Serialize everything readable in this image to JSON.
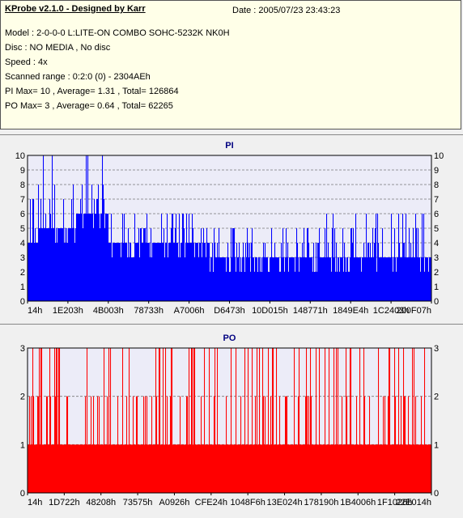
{
  "header": {
    "title": "KProbe v2.1.0 - Designed by Karr",
    "date": "Date : 2005/07/23 23:43:23",
    "model": "Model : 2-0-0-0 L:LITE-ON COMBO SOHC-5232K NK0H",
    "disc": "Disc : NO MEDIA , No disc",
    "speed": "Speed : 4x",
    "range": "Scanned range : 0:2:0 (0) - 2304AEh",
    "pi_summary": "PI Max= 10 , Average= 1.31 , Total= 126864",
    "po_summary": "PO Max= 3 , Average= 0.64 , Total= 62265"
  },
  "chart_data": [
    {
      "type": "bar",
      "title": "PI",
      "color": "#0000ff",
      "ylim": [
        0,
        10
      ],
      "yticks": [
        0,
        1,
        2,
        3,
        4,
        5,
        6,
        7,
        8,
        9,
        10
      ],
      "grid": true,
      "xtick_labels": [
        "14h",
        "1E203h",
        "4B003h",
        "78733h",
        "A7006h",
        "D6473h",
        "10D015h",
        "148771h",
        "1849E4h",
        "1C2403h",
        "200F07h"
      ],
      "segments": [
        {
          "x": [
            0.0,
            0.03
          ],
          "base": 4,
          "peaks": [
            5,
            6,
            7,
            8
          ]
        },
        {
          "x": [
            0.03,
            0.12
          ],
          "base": 5,
          "peaks": [
            6,
            7,
            8,
            10
          ]
        },
        {
          "x": [
            0.12,
            0.2
          ],
          "base": 6,
          "peaks": [
            7,
            8,
            10
          ]
        },
        {
          "x": [
            0.2,
            0.45
          ],
          "base": 4,
          "peaks": [
            5,
            6
          ]
        },
        {
          "x": [
            0.45,
            0.7
          ],
          "base": 3,
          "peaks": [
            4,
            5
          ]
        },
        {
          "x": [
            0.7,
            1.0
          ],
          "base": 3,
          "peaks": [
            4,
            5,
            6
          ]
        }
      ]
    },
    {
      "type": "bar",
      "title": "PO",
      "color": "#ff0000",
      "ylim": [
        0,
        3
      ],
      "yticks": [
        0,
        1,
        2,
        3
      ],
      "grid": true,
      "xtick_labels": [
        "14h",
        "1D722h",
        "48208h",
        "73575h",
        "A0926h",
        "CFE24h",
        "1048F6h",
        "13E024h",
        "178190h",
        "1B4006h",
        "1F1026h",
        "22E014h"
      ],
      "segments": [
        {
          "x": [
            0.0,
            1.0
          ],
          "base": 1,
          "peaks": [
            2,
            3
          ]
        }
      ]
    }
  ]
}
